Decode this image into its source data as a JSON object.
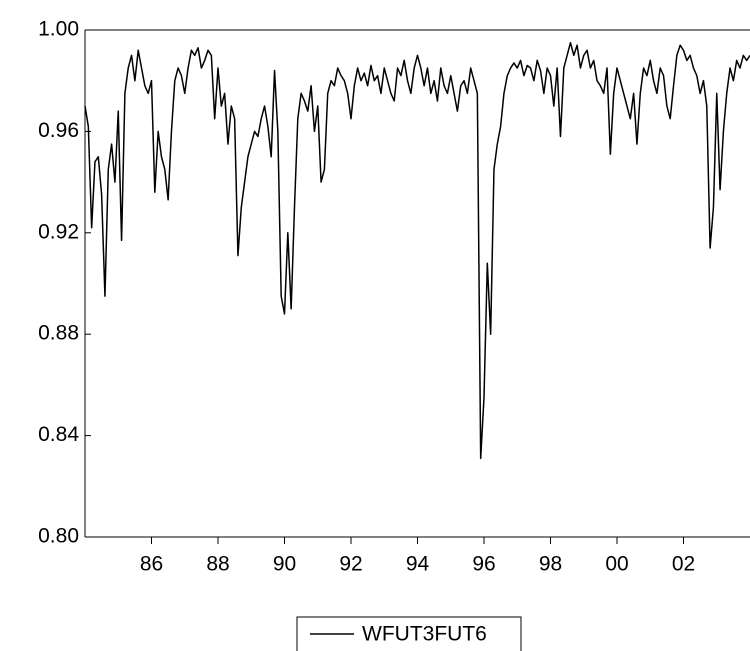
{
  "chart_data": {
    "type": "line",
    "x": [
      1984.0,
      1984.1,
      1984.2,
      1984.3,
      1984.4,
      1984.5,
      1984.6,
      1984.7,
      1984.8,
      1984.9,
      1985.0,
      1985.1,
      1985.2,
      1985.3,
      1985.4,
      1985.5,
      1985.6,
      1985.7,
      1985.8,
      1985.9,
      1986.0,
      1986.1,
      1986.2,
      1986.3,
      1986.4,
      1986.5,
      1986.6,
      1986.7,
      1986.8,
      1986.9,
      1987.0,
      1987.1,
      1987.2,
      1987.3,
      1987.4,
      1987.5,
      1987.6,
      1987.7,
      1987.8,
      1987.9,
      1988.0,
      1988.1,
      1988.2,
      1988.3,
      1988.4,
      1988.5,
      1988.6,
      1988.7,
      1988.8,
      1988.9,
      1989.0,
      1989.1,
      1989.2,
      1989.3,
      1989.4,
      1989.5,
      1989.6,
      1989.7,
      1989.8,
      1989.9,
      1990.0,
      1990.1,
      1990.2,
      1990.3,
      1990.4,
      1990.5,
      1990.6,
      1990.7,
      1990.8,
      1990.9,
      1991.0,
      1991.1,
      1991.2,
      1991.3,
      1991.4,
      1991.5,
      1991.6,
      1991.7,
      1991.8,
      1991.9,
      1992.0,
      1992.1,
      1992.2,
      1992.3,
      1992.4,
      1992.5,
      1992.6,
      1992.7,
      1992.8,
      1992.9,
      1993.0,
      1993.1,
      1993.2,
      1993.3,
      1993.4,
      1993.5,
      1993.6,
      1993.7,
      1993.8,
      1993.9,
      1994.0,
      1994.1,
      1994.2,
      1994.3,
      1994.4,
      1994.5,
      1994.6,
      1994.7,
      1994.8,
      1994.9,
      1995.0,
      1995.1,
      1995.2,
      1995.3,
      1995.4,
      1995.5,
      1995.6,
      1995.7,
      1995.8,
      1995.9,
      1996.0,
      1996.1,
      1996.2,
      1996.3,
      1996.4,
      1996.5,
      1996.6,
      1996.7,
      1996.8,
      1996.9,
      1997.0,
      1997.1,
      1997.2,
      1997.3,
      1997.4,
      1997.5,
      1997.6,
      1997.7,
      1997.8,
      1997.9,
      1998.0,
      1998.1,
      1998.2,
      1998.3,
      1998.4,
      1998.5,
      1998.6,
      1998.7,
      1998.8,
      1998.9,
      1999.0,
      1999.1,
      1999.2,
      1999.3,
      1999.4,
      1999.5,
      1999.6,
      1999.7,
      1999.8,
      1999.9,
      2000.0,
      2000.1,
      2000.2,
      2000.3,
      2000.4,
      2000.5,
      2000.6,
      2000.7,
      2000.8,
      2000.9,
      2001.0,
      2001.1,
      2001.2,
      2001.3,
      2001.4,
      2001.5,
      2001.6,
      2001.7,
      2001.8,
      2001.9,
      2002.0,
      2002.1,
      2002.2,
      2002.3,
      2002.4,
      2002.5,
      2002.6,
      2002.7,
      2002.8,
      2002.9,
      2003.0,
      2003.1,
      2003.2,
      2003.3,
      2003.4,
      2003.5,
      2003.6,
      2003.7,
      2003.8,
      2003.9,
      2004.0
    ],
    "series": [
      {
        "name": "WFUT3FUT6",
        "color": "#000000",
        "values": [
          0.97,
          0.962,
          0.922,
          0.948,
          0.95,
          0.935,
          0.895,
          0.945,
          0.955,
          0.94,
          0.968,
          0.917,
          0.975,
          0.985,
          0.99,
          0.98,
          0.992,
          0.985,
          0.978,
          0.975,
          0.98,
          0.936,
          0.96,
          0.95,
          0.945,
          0.933,
          0.96,
          0.98,
          0.985,
          0.982,
          0.975,
          0.985,
          0.992,
          0.99,
          0.993,
          0.985,
          0.988,
          0.992,
          0.99,
          0.965,
          0.985,
          0.97,
          0.975,
          0.955,
          0.97,
          0.965,
          0.911,
          0.93,
          0.94,
          0.95,
          0.955,
          0.96,
          0.958,
          0.965,
          0.97,
          0.962,
          0.95,
          0.984,
          0.96,
          0.895,
          0.888,
          0.92,
          0.89,
          0.93,
          0.965,
          0.975,
          0.972,
          0.968,
          0.978,
          0.96,
          0.97,
          0.94,
          0.945,
          0.975,
          0.98,
          0.978,
          0.985,
          0.982,
          0.98,
          0.975,
          0.965,
          0.978,
          0.985,
          0.98,
          0.983,
          0.978,
          0.986,
          0.98,
          0.982,
          0.975,
          0.985,
          0.98,
          0.975,
          0.972,
          0.985,
          0.982,
          0.988,
          0.98,
          0.975,
          0.985,
          0.99,
          0.985,
          0.978,
          0.985,
          0.975,
          0.98,
          0.972,
          0.985,
          0.978,
          0.975,
          0.982,
          0.975,
          0.968,
          0.978,
          0.98,
          0.975,
          0.985,
          0.98,
          0.975,
          0.831,
          0.855,
          0.908,
          0.88,
          0.945,
          0.955,
          0.962,
          0.975,
          0.982,
          0.985,
          0.987,
          0.985,
          0.988,
          0.982,
          0.986,
          0.985,
          0.98,
          0.988,
          0.984,
          0.975,
          0.985,
          0.982,
          0.97,
          0.985,
          0.958,
          0.985,
          0.99,
          0.995,
          0.99,
          0.994,
          0.985,
          0.99,
          0.992,
          0.985,
          0.988,
          0.98,
          0.978,
          0.975,
          0.985,
          0.951,
          0.975,
          0.985,
          0.98,
          0.975,
          0.97,
          0.965,
          0.975,
          0.955,
          0.975,
          0.985,
          0.982,
          0.988,
          0.98,
          0.975,
          0.985,
          0.982,
          0.97,
          0.965,
          0.978,
          0.99,
          0.994,
          0.992,
          0.988,
          0.99,
          0.985,
          0.982,
          0.975,
          0.98,
          0.97,
          0.914,
          0.93,
          0.975,
          0.937,
          0.96,
          0.975,
          0.985,
          0.98,
          0.988,
          0.985,
          0.99,
          0.988,
          0.99
        ]
      }
    ],
    "xlim": [
      1984,
      2004
    ],
    "xticks": [
      {
        "value": 1986,
        "label": "86"
      },
      {
        "value": 1988,
        "label": "88"
      },
      {
        "value": 1990,
        "label": "90"
      },
      {
        "value": 1992,
        "label": "92"
      },
      {
        "value": 1994,
        "label": "94"
      },
      {
        "value": 1996,
        "label": "96"
      },
      {
        "value": 1998,
        "label": "98"
      },
      {
        "value": 2000,
        "label": "00"
      },
      {
        "value": 2002,
        "label": "02"
      }
    ],
    "ylim": [
      0.8,
      1.0
    ],
    "yticks": [
      {
        "value": 0.8,
        "label": "0.80"
      },
      {
        "value": 0.84,
        "label": "0.84"
      },
      {
        "value": 0.88,
        "label": "0.88"
      },
      {
        "value": 0.92,
        "label": "0.92"
      },
      {
        "value": 0.96,
        "label": "0.96"
      },
      {
        "value": 1.0,
        "label": "1.00"
      }
    ],
    "legend": "bottom"
  }
}
